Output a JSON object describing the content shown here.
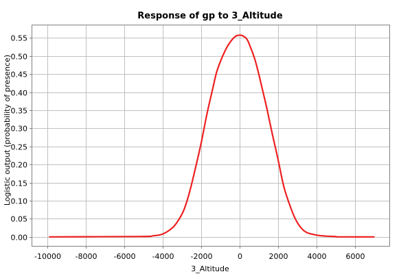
{
  "chart_data": {
    "type": "line",
    "title": "Response of gp to 3_Altitude",
    "xlabel": "3_Altitude",
    "ylabel": "Logistic output (probability of presence)",
    "xlim": [
      -10800,
      7800
    ],
    "ylim": [
      -0.025,
      0.585
    ],
    "xticks": [
      -10000,
      -8000,
      -6000,
      -4000,
      -2000,
      0,
      2000,
      4000,
      6000
    ],
    "yticks": [
      0.0,
      0.05,
      0.1,
      0.15,
      0.2,
      0.25,
      0.3,
      0.35,
      0.4,
      0.45,
      0.5,
      0.55
    ],
    "xtick_labels": [
      "-10000",
      "-8000",
      "-6000",
      "-4000",
      "-2000",
      "0",
      "2000",
      "4000",
      "6000"
    ],
    "ytick_labels": [
      "0.00",
      "0.05",
      "0.10",
      "0.15",
      "0.20",
      "0.25",
      "0.30",
      "0.35",
      "0.40",
      "0.45",
      "0.50",
      "0.55"
    ],
    "grid": true,
    "series": [
      {
        "color": "#ee2020",
        "x": [
          -9900,
          -5200,
          -4500,
          -4000,
          -3500,
          -3200,
          -2900,
          -2600,
          -2300,
          -2000,
          -1700,
          -1400,
          -1200,
          -1000,
          -800,
          -600,
          -400,
          -200,
          0,
          200,
          400,
          600,
          800,
          1000,
          1200,
          1400,
          1700,
          2000,
          2300,
          2600,
          2900,
          3200,
          3500,
          4000,
          4500,
          5000,
          5200,
          7000
        ],
        "y": [
          0.0,
          0.001,
          0.003,
          0.008,
          0.025,
          0.045,
          0.075,
          0.125,
          0.19,
          0.26,
          0.34,
          0.41,
          0.455,
          0.485,
          0.51,
          0.53,
          0.545,
          0.555,
          0.558,
          0.555,
          0.545,
          0.52,
          0.49,
          0.45,
          0.405,
          0.36,
          0.285,
          0.215,
          0.14,
          0.09,
          0.05,
          0.025,
          0.012,
          0.005,
          0.002,
          0.001,
          0.0,
          0.0
        ]
      }
    ]
  }
}
